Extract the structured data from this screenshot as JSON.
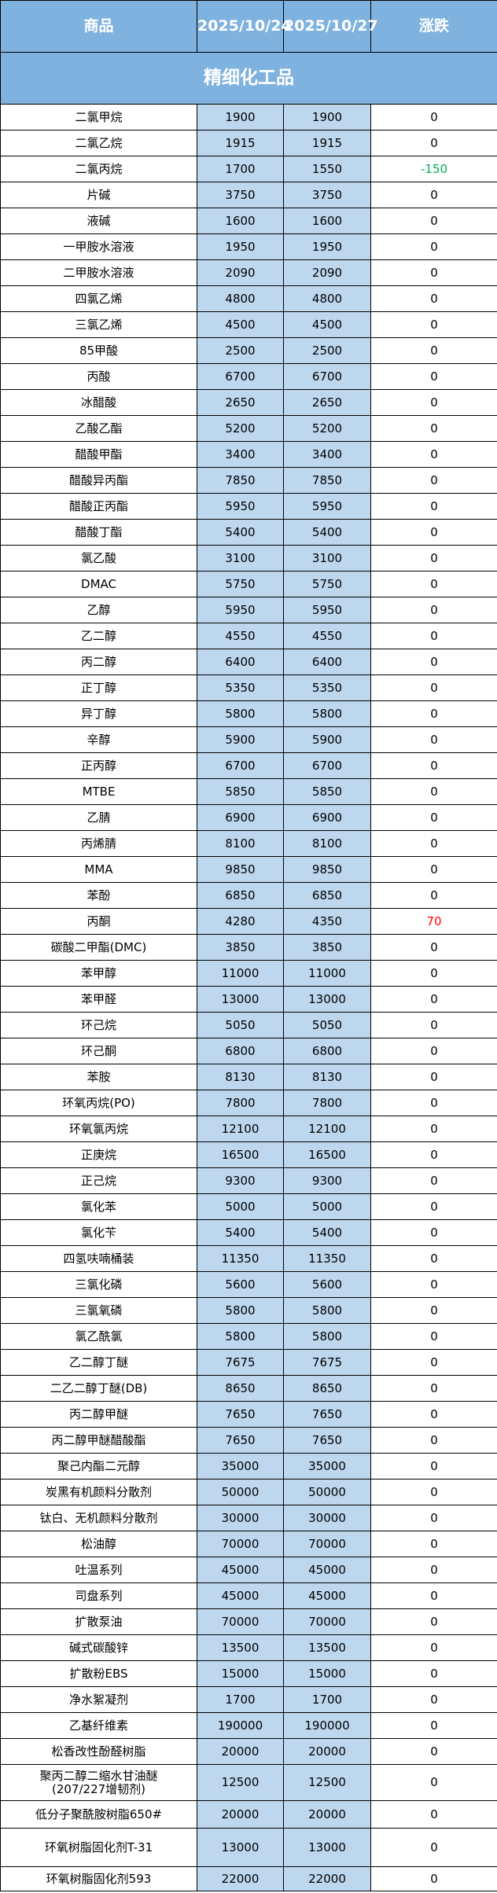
{
  "header": {
    "product": "商品",
    "date1": "2025/10/24",
    "date2": "2025/10/27",
    "change": "涨跌"
  },
  "section_title": "精细化工品",
  "colors": {
    "header_bg": "#7fb2de",
    "price_bg": "#bdd7ee",
    "up": "#ff0000",
    "down": "#00b050"
  },
  "rows": [
    {
      "name": "二氯甲烷",
      "p1": "1900",
      "p2": "1900",
      "chg": "0"
    },
    {
      "name": "二氯乙烷",
      "p1": "1915",
      "p2": "1915",
      "chg": "0"
    },
    {
      "name": "二氯丙烷",
      "p1": "1700",
      "p2": "1550",
      "chg": "-150"
    },
    {
      "name": "片碱",
      "p1": "3750",
      "p2": "3750",
      "chg": "0"
    },
    {
      "name": "液碱",
      "p1": "1600",
      "p2": "1600",
      "chg": "0"
    },
    {
      "name": "一甲胺水溶液",
      "p1": "1950",
      "p2": "1950",
      "chg": "0"
    },
    {
      "name": "二甲胺水溶液",
      "p1": "2090",
      "p2": "2090",
      "chg": "0"
    },
    {
      "name": "四氯乙烯",
      "p1": "4800",
      "p2": "4800",
      "chg": "0"
    },
    {
      "name": "三氯乙烯",
      "p1": "4500",
      "p2": "4500",
      "chg": "0"
    },
    {
      "name": "85甲酸",
      "p1": "2500",
      "p2": "2500",
      "chg": "0"
    },
    {
      "name": "丙酸",
      "p1": "6700",
      "p2": "6700",
      "chg": "0"
    },
    {
      "name": "冰醋酸",
      "p1": "2650",
      "p2": "2650",
      "chg": "0"
    },
    {
      "name": "乙酸乙酯",
      "p1": "5200",
      "p2": "5200",
      "chg": "0"
    },
    {
      "name": "醋酸甲酯",
      "p1": "3400",
      "p2": "3400",
      "chg": "0"
    },
    {
      "name": "醋酸异丙酯",
      "p1": "7850",
      "p2": "7850",
      "chg": "0"
    },
    {
      "name": "醋酸正丙酯",
      "p1": "5950",
      "p2": "5950",
      "chg": "0"
    },
    {
      "name": "醋酸丁酯",
      "p1": "5400",
      "p2": "5400",
      "chg": "0"
    },
    {
      "name": "氯乙酸",
      "p1": "3100",
      "p2": "3100",
      "chg": "0"
    },
    {
      "name": "DMAC",
      "p1": "5750",
      "p2": "5750",
      "chg": "0"
    },
    {
      "name": "乙醇",
      "p1": "5950",
      "p2": "5950",
      "chg": "0"
    },
    {
      "name": "乙二醇",
      "p1": "4550",
      "p2": "4550",
      "chg": "0"
    },
    {
      "name": "丙二醇",
      "p1": "6400",
      "p2": "6400",
      "chg": "0"
    },
    {
      "name": "正丁醇",
      "p1": "5350",
      "p2": "5350",
      "chg": "0"
    },
    {
      "name": "异丁醇",
      "p1": "5800",
      "p2": "5800",
      "chg": "0"
    },
    {
      "name": "辛醇",
      "p1": "5900",
      "p2": "5900",
      "chg": "0"
    },
    {
      "name": "正丙醇",
      "p1": "6700",
      "p2": "6700",
      "chg": "0"
    },
    {
      "name": "MTBE",
      "p1": "5850",
      "p2": "5850",
      "chg": "0"
    },
    {
      "name": "乙腈",
      "p1": "6900",
      "p2": "6900",
      "chg": "0"
    },
    {
      "name": "丙烯腈",
      "p1": "8100",
      "p2": "8100",
      "chg": "0"
    },
    {
      "name": "MMA",
      "p1": "9850",
      "p2": "9850",
      "chg": "0"
    },
    {
      "name": "苯酚",
      "p1": "6850",
      "p2": "6850",
      "chg": "0"
    },
    {
      "name": "丙酮",
      "p1": "4280",
      "p2": "4350",
      "chg": "70"
    },
    {
      "name": "碳酸二甲酯(DMC)",
      "p1": "3850",
      "p2": "3850",
      "chg": "0"
    },
    {
      "name": "苯甲醇",
      "p1": "11000",
      "p2": "11000",
      "chg": "0"
    },
    {
      "name": "苯甲醛",
      "p1": "13000",
      "p2": "13000",
      "chg": "0"
    },
    {
      "name": "环己烷",
      "p1": "5050",
      "p2": "5050",
      "chg": "0"
    },
    {
      "name": "环己酮",
      "p1": "6800",
      "p2": "6800",
      "chg": "0"
    },
    {
      "name": "苯胺",
      "p1": "8130",
      "p2": "8130",
      "chg": "0"
    },
    {
      "name": "环氧丙烷(PO)",
      "p1": "7800",
      "p2": "7800",
      "chg": "0"
    },
    {
      "name": "环氧氯丙烷",
      "p1": "12100",
      "p2": "12100",
      "chg": "0"
    },
    {
      "name": "正庚烷",
      "p1": "16500",
      "p2": "16500",
      "chg": "0"
    },
    {
      "name": "正己烷",
      "p1": "9300",
      "p2": "9300",
      "chg": "0"
    },
    {
      "name": "氯化苯",
      "p1": "5000",
      "p2": "5000",
      "chg": "0"
    },
    {
      "name": "氯化苄",
      "p1": "5400",
      "p2": "5400",
      "chg": "0"
    },
    {
      "name": "四氢呋喃桶装",
      "p1": "11350",
      "p2": "11350",
      "chg": "0"
    },
    {
      "name": "三氯化磷",
      "p1": "5600",
      "p2": "5600",
      "chg": "0"
    },
    {
      "name": "三氯氧磷",
      "p1": "5800",
      "p2": "5800",
      "chg": "0"
    },
    {
      "name": "氯乙酰氯",
      "p1": "5800",
      "p2": "5800",
      "chg": "0"
    },
    {
      "name": "乙二醇丁醚",
      "p1": "7675",
      "p2": "7675",
      "chg": "0"
    },
    {
      "name": "二乙二醇丁醚(DB)",
      "p1": "8650",
      "p2": "8650",
      "chg": "0"
    },
    {
      "name": "丙二醇甲醚",
      "p1": "7650",
      "p2": "7650",
      "chg": "0"
    },
    {
      "name": "丙二醇甲醚醋酸酯",
      "p1": "7650",
      "p2": "7650",
      "chg": "0"
    },
    {
      "name": "聚己内酯二元醇",
      "p1": "35000",
      "p2": "35000",
      "chg": "0"
    },
    {
      "name": "炭黑有机颜料分散剂",
      "p1": "50000",
      "p2": "50000",
      "chg": "0"
    },
    {
      "name": "钛白、无机颜料分散剂",
      "p1": "30000",
      "p2": "30000",
      "chg": "0"
    },
    {
      "name": "松油醇",
      "p1": "70000",
      "p2": "70000",
      "chg": "0"
    },
    {
      "name": "吐温系列",
      "p1": "45000",
      "p2": "45000",
      "chg": "0"
    },
    {
      "name": "司盘系列",
      "p1": "45000",
      "p2": "45000",
      "chg": "0"
    },
    {
      "name": "扩散泵油",
      "p1": "70000",
      "p2": "70000",
      "chg": "0"
    },
    {
      "name": "碱式碳酸锌",
      "p1": "13500",
      "p2": "13500",
      "chg": "0"
    },
    {
      "name": "扩散粉EBS",
      "p1": "15000",
      "p2": "15000",
      "chg": "0"
    },
    {
      "name": "净水絮凝剂",
      "p1": "1700",
      "p2": "1700",
      "chg": "0"
    },
    {
      "name": "乙基纤维素",
      "p1": "190000",
      "p2": "190000",
      "chg": "0"
    },
    {
      "name": "松香改性酚醛树脂",
      "p1": "20000",
      "p2": "20000",
      "chg": "0"
    },
    {
      "name": "聚丙二醇二缩水甘油醚\n(207/227增韧剂)",
      "p1": "12500",
      "p2": "12500",
      "chg": "0"
    },
    {
      "name": "低分子聚酰胺树脂650#",
      "p1": "20000",
      "p2": "20000",
      "chg": "0"
    },
    {
      "name": "环氧树脂固化剂T-31",
      "p1": "13000",
      "p2": "13000",
      "chg": "0"
    },
    {
      "name": "环氧树脂固化剂593",
      "p1": "22000",
      "p2": "22000",
      "chg": "0"
    }
  ]
}
